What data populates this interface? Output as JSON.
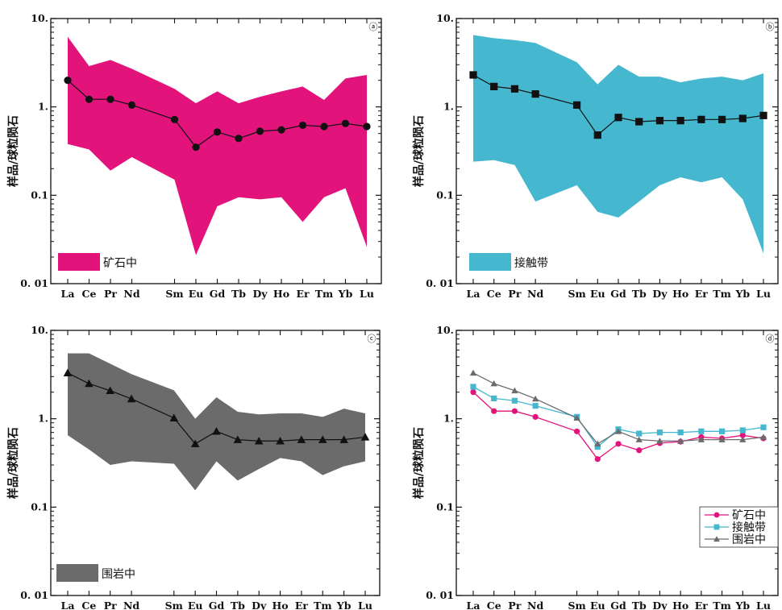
{
  "chart_data": [
    {
      "type": "area",
      "panel_label": "ⓐ",
      "ylabel": "样品/球粒陨石",
      "yscale": "log",
      "ylim": [
        0.01,
        10
      ],
      "yticks": [
        "0. 01",
        "0.1",
        "1.",
        "10."
      ],
      "categories": [
        "La",
        "Ce",
        "Pr",
        "Nd",
        "Sm",
        "Eu",
        "Gd",
        "Tb",
        "Dy",
        "Ho",
        "Er",
        "Tm",
        "Yb",
        "Lu"
      ],
      "category_positions": [
        0,
        1,
        2,
        3,
        5,
        6,
        7,
        8,
        9,
        10,
        11,
        12,
        13,
        14
      ],
      "band_color": "#e3137c",
      "band_upper": [
        6.2,
        2.9,
        3.4,
        2.7,
        1.6,
        1.1,
        1.5,
        1.1,
        1.3,
        1.5,
        1.7,
        1.2,
        2.1,
        2.3
      ],
      "band_lower": [
        0.38,
        0.33,
        0.19,
        0.27,
        0.15,
        0.021,
        0.075,
        0.095,
        0.09,
        0.095,
        0.05,
        0.095,
        0.12,
        0.026
      ],
      "series": [
        {
          "values": [
            2.0,
            1.22,
            1.22,
            1.05,
            0.72,
            0.35,
            0.52,
            0.44,
            0.53,
            0.55,
            0.62,
            0.6,
            0.65,
            0.6
          ],
          "marker": "circle",
          "color": "#111111"
        }
      ],
      "legend": {
        "label": "矿石中",
        "color": "#e3137c"
      }
    },
    {
      "type": "area",
      "panel_label": "ⓑ",
      "ylabel": "样品/球粒陨石",
      "yscale": "log",
      "ylim": [
        0.01,
        10
      ],
      "yticks": [
        "0. 01",
        "0.1",
        "1.",
        "10."
      ],
      "categories": [
        "La",
        "Ce",
        "Pr",
        "Nd",
        "Sm",
        "Eu",
        "Gd",
        "Tb",
        "Dy",
        "Ho",
        "Er",
        "Tm",
        "Yb",
        "Lu"
      ],
      "category_positions": [
        0,
        1,
        2,
        3,
        5,
        6,
        7,
        8,
        9,
        10,
        11,
        12,
        13,
        14
      ],
      "band_color": "#45b8cf",
      "band_upper": [
        6.5,
        6.0,
        5.7,
        5.3,
        3.2,
        1.8,
        3.0,
        2.2,
        2.2,
        1.9,
        2.1,
        2.2,
        2.0,
        2.4
      ],
      "band_lower": [
        0.24,
        0.25,
        0.22,
        0.085,
        0.13,
        0.065,
        0.056,
        0.085,
        0.13,
        0.16,
        0.14,
        0.16,
        0.09,
        0.022
      ],
      "series": [
        {
          "values": [
            2.3,
            1.7,
            1.6,
            1.4,
            1.05,
            0.48,
            0.76,
            0.68,
            0.7,
            0.7,
            0.72,
            0.72,
            0.74,
            0.8
          ],
          "marker": "square",
          "color": "#111111"
        }
      ],
      "legend": {
        "label": "接触带",
        "color": "#45b8cf"
      }
    },
    {
      "type": "area",
      "panel_label": "ⓒ",
      "ylabel": "样品/球粒陨石",
      "yscale": "log",
      "ylim": [
        0.01,
        10
      ],
      "yticks": [
        "0. 01",
        "0.1",
        "1.",
        "10."
      ],
      "categories": [
        "La",
        "Ce",
        "Pr",
        "Nd",
        "Sm",
        "Eu",
        "Gd",
        "Tb",
        "Dy",
        "Ho",
        "Er",
        "Tm",
        "Yb",
        "Lu"
      ],
      "category_positions": [
        0,
        1,
        2,
        3,
        5,
        6,
        7,
        8,
        9,
        10,
        11,
        12,
        13,
        14
      ],
      "band_color": "#6b6b6b",
      "band_upper": [
        5.5,
        5.5,
        4.2,
        3.2,
        2.1,
        1.0,
        1.75,
        1.2,
        1.12,
        1.15,
        1.15,
        1.05,
        1.3,
        1.15
      ],
      "band_lower": [
        0.65,
        0.45,
        0.3,
        0.33,
        0.31,
        0.155,
        0.33,
        0.2,
        0.27,
        0.36,
        0.33,
        0.23,
        0.29,
        0.33
      ],
      "series": [
        {
          "values": [
            3.3,
            2.5,
            2.08,
            1.68,
            1.02,
            0.52,
            0.72,
            0.58,
            0.56,
            0.56,
            0.58,
            0.58,
            0.58,
            0.62
          ],
          "marker": "triangle",
          "color": "#111111"
        }
      ],
      "legend": {
        "label": "围岩中",
        "color": "#6b6b6b"
      }
    },
    {
      "type": "line",
      "panel_label": "ⓓ",
      "ylabel": "样品/球粒陨石",
      "yscale": "log",
      "ylim": [
        0.01,
        10
      ],
      "yticks": [
        "0. 01",
        "0.1",
        "1.",
        "10."
      ],
      "categories": [
        "La",
        "Ce",
        "Pr",
        "Nd",
        "Sm",
        "Eu",
        "Gd",
        "Tb",
        "Dy",
        "Ho",
        "Er",
        "Tm",
        "Yb",
        "Lu"
      ],
      "category_positions": [
        0,
        1,
        2,
        3,
        5,
        6,
        7,
        8,
        9,
        10,
        11,
        12,
        13,
        14
      ],
      "series": [
        {
          "name": "矿石中",
          "values": [
            2.0,
            1.22,
            1.22,
            1.05,
            0.72,
            0.35,
            0.52,
            0.44,
            0.53,
            0.55,
            0.62,
            0.6,
            0.65,
            0.6
          ],
          "marker": "circle",
          "color": "#e3137c"
        },
        {
          "name": "接触带",
          "values": [
            2.3,
            1.7,
            1.6,
            1.4,
            1.05,
            0.48,
            0.76,
            0.68,
            0.7,
            0.7,
            0.72,
            0.72,
            0.74,
            0.8
          ],
          "marker": "square",
          "color": "#45b8cf"
        },
        {
          "name": "围岩中",
          "values": [
            3.3,
            2.5,
            2.08,
            1.68,
            1.02,
            0.52,
            0.72,
            0.58,
            0.56,
            0.56,
            0.58,
            0.58,
            0.58,
            0.62
          ],
          "marker": "triangle",
          "color": "#6b6b6b"
        }
      ],
      "legend": {
        "placement": "lower-right"
      }
    }
  ]
}
